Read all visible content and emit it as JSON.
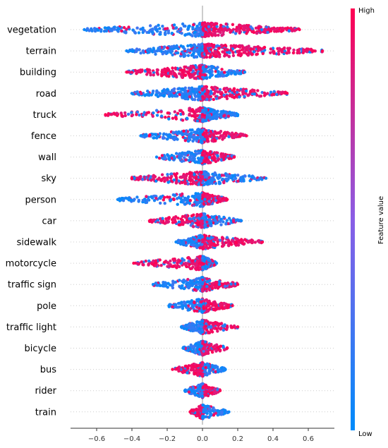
{
  "chart_data": {
    "type": "scatter",
    "subtype": "beeswarm",
    "title": "",
    "xlabel": "",
    "xlim": [
      -0.75,
      0.75
    ],
    "x_ticks": [
      -0.6,
      -0.4,
      -0.2,
      0.0,
      0.2,
      0.4,
      0.6
    ],
    "x_tick_labels": [
      "−0.6",
      "−0.4",
      "−0.2",
      "0.0",
      "0.2",
      "0.4",
      "0.6"
    ],
    "features": [
      {
        "name": "vegetation",
        "min": -0.67,
        "max": 0.55,
        "neg_density": 0.42,
        "low_side": "negative"
      },
      {
        "name": "terrain",
        "min": -0.43,
        "max": 0.68,
        "neg_density": 0.38,
        "low_side": "negative"
      },
      {
        "name": "building",
        "min": -0.43,
        "max": 0.24,
        "neg_density": 0.55,
        "low_side": "positive"
      },
      {
        "name": "road",
        "min": -0.4,
        "max": 0.48,
        "neg_density": 0.45,
        "low_side": "negative"
      },
      {
        "name": "truck",
        "min": -0.55,
        "max": 0.2,
        "neg_density": 0.35,
        "low_side": "positive"
      },
      {
        "name": "fence",
        "min": -0.35,
        "max": 0.25,
        "neg_density": 0.5,
        "low_side": "negative"
      },
      {
        "name": "wall",
        "min": -0.26,
        "max": 0.18,
        "neg_density": 0.5,
        "low_side": "negative"
      },
      {
        "name": "sky",
        "min": -0.4,
        "max": 0.36,
        "neg_density": 0.5,
        "low_side": "positive"
      },
      {
        "name": "person",
        "min": -0.48,
        "max": 0.14,
        "neg_density": 0.45,
        "low_side": "negative"
      },
      {
        "name": "car",
        "min": -0.3,
        "max": 0.22,
        "neg_density": 0.5,
        "low_side": "positive"
      },
      {
        "name": "sidewalk",
        "min": -0.15,
        "max": 0.34,
        "neg_density": 0.35,
        "low_side": "negative"
      },
      {
        "name": "motorcycle",
        "min": -0.39,
        "max": 0.08,
        "neg_density": 0.6,
        "low_side": "positive"
      },
      {
        "name": "traffic sign",
        "min": -0.28,
        "max": 0.2,
        "neg_density": 0.5,
        "low_side": "negative"
      },
      {
        "name": "pole",
        "min": -0.19,
        "max": 0.17,
        "neg_density": 0.5,
        "low_side": "negative"
      },
      {
        "name": "traffic light",
        "min": -0.12,
        "max": 0.2,
        "neg_density": 0.45,
        "low_side": "negative"
      },
      {
        "name": "bicycle",
        "min": -0.11,
        "max": 0.14,
        "neg_density": 0.5,
        "low_side": "negative"
      },
      {
        "name": "bus",
        "min": -0.17,
        "max": 0.13,
        "neg_density": 0.5,
        "low_side": "positive"
      },
      {
        "name": "rider",
        "min": -0.1,
        "max": 0.1,
        "neg_density": 0.5,
        "low_side": "negative"
      },
      {
        "name": "train",
        "min": -0.07,
        "max": 0.15,
        "neg_density": 0.5,
        "low_side": "positive"
      }
    ],
    "colorbar": {
      "label": "Feature value",
      "high_label": "High",
      "low_label": "Low",
      "high_color": "#ff0052",
      "low_color": "#008bfb"
    },
    "zero_line": true,
    "grid": false
  }
}
